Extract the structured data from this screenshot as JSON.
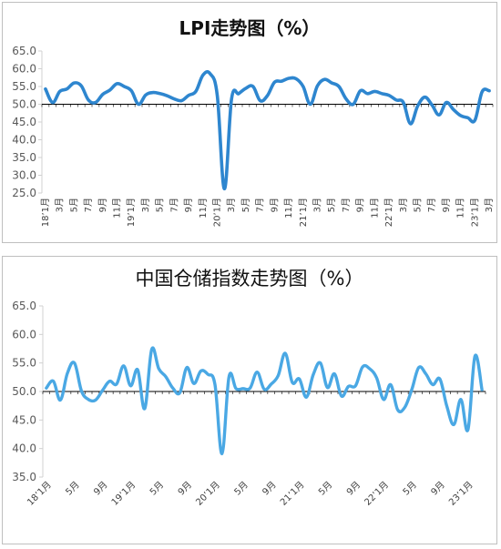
{
  "chart_data": [
    {
      "type": "line",
      "title": "LPI走势图（%）",
      "xlabel": "",
      "ylabel": "",
      "ylim": [
        25,
        65
      ],
      "yticks": [
        "25.0",
        "30.0",
        "35.0",
        "40.0",
        "45.0",
        "50.0",
        "55.0",
        "60.0",
        "65.0"
      ],
      "xtick_labels": [
        "18’1月",
        "3月",
        "5月",
        "7月",
        "9月",
        "11月",
        "19’1月",
        "3月",
        "5月",
        "7月",
        "9月",
        "11月",
        "20’1月",
        "3月",
        "5月",
        "7月",
        "9月",
        "11月",
        "21’1月",
        "3月",
        "5月",
        "7月",
        "9月",
        "11月",
        "22’1月",
        "3月",
        "5月",
        "7月",
        "9月",
        "11月",
        "23’1月",
        "3月"
      ],
      "reference_line": 50,
      "color": "#2e86cf",
      "months": [
        "2018-01",
        "2018-02",
        "2018-03",
        "2018-04",
        "2018-05",
        "2018-06",
        "2018-07",
        "2018-08",
        "2018-09",
        "2018-10",
        "2018-11",
        "2018-12",
        "2019-01",
        "2019-02",
        "2019-03",
        "2019-04",
        "2019-05",
        "2019-06",
        "2019-07",
        "2019-08",
        "2019-09",
        "2019-10",
        "2019-11",
        "2019-12",
        "2020-01",
        "2020-02",
        "2020-03",
        "2020-04",
        "2020-05",
        "2020-06",
        "2020-07",
        "2020-08",
        "2020-09",
        "2020-10",
        "2020-11",
        "2020-12",
        "2021-01",
        "2021-02",
        "2021-03",
        "2021-04",
        "2021-05",
        "2021-06",
        "2021-07",
        "2021-08",
        "2021-09",
        "2021-10",
        "2021-11",
        "2021-12",
        "2022-01",
        "2022-02",
        "2022-03",
        "2022-04",
        "2022-05",
        "2022-06",
        "2022-07",
        "2022-08",
        "2022-09",
        "2022-10",
        "2022-11",
        "2022-12",
        "2023-01",
        "2023-02",
        "2023-03"
      ],
      "values": [
        54.3,
        50.5,
        53.6,
        54.3,
        56.0,
        55.2,
        51.2,
        50.5,
        52.8,
        54.0,
        55.8,
        55.0,
        53.8,
        50.0,
        52.6,
        53.3,
        53.0,
        52.4,
        51.5,
        51.0,
        52.5,
        53.6,
        58.2,
        58.6,
        52.5,
        26.2,
        51.5,
        53.0,
        54.5,
        55.0,
        51.0,
        52.4,
        56.2,
        56.5,
        57.3,
        57.2,
        55.0,
        50.0,
        55.2,
        57.0,
        56.0,
        55.0,
        51.5,
        50.0,
        53.8,
        53.0,
        53.6,
        53.0,
        52.5,
        51.2,
        50.5,
        44.5,
        49.5,
        52.0,
        49.8,
        47.0,
        50.5,
        48.5,
        46.8,
        46.2,
        45.5,
        53.5,
        53.8
      ],
      "annotations": []
    },
    {
      "type": "line",
      "title": "中国仓储指数走势图（%）",
      "xlabel": "",
      "ylabel": "",
      "ylim": [
        35,
        65
      ],
      "yticks": [
        "35.0",
        "40.0",
        "45.0",
        "50.0",
        "55.0",
        "60.0",
        "65.0"
      ],
      "xtick_labels": [
        "18’1月",
        "5月",
        "9月",
        "19’1月",
        "5月",
        "9月",
        "20’1月",
        "5月",
        "9月",
        "21’1月",
        "5月",
        "9月",
        "22’1月",
        "5月",
        "9月",
        "23’1月"
      ],
      "reference_line": 50,
      "color": "#4aa8e4",
      "months": [
        "2018-01",
        "2018-02",
        "2018-03",
        "2018-04",
        "2018-05",
        "2018-06",
        "2018-07",
        "2018-08",
        "2018-09",
        "2018-10",
        "2018-11",
        "2018-12",
        "2019-01",
        "2019-02",
        "2019-03",
        "2019-04",
        "2019-05",
        "2019-06",
        "2019-07",
        "2019-08",
        "2019-09",
        "2019-10",
        "2019-11",
        "2019-12",
        "2020-01",
        "2020-02",
        "2020-03",
        "2020-04",
        "2020-05",
        "2020-06",
        "2020-07",
        "2020-08",
        "2020-09",
        "2020-10",
        "2020-11",
        "2020-12",
        "2021-01",
        "2021-02",
        "2021-03",
        "2021-04",
        "2021-05",
        "2021-06",
        "2021-07",
        "2021-08",
        "2021-09",
        "2021-10",
        "2021-11",
        "2021-12",
        "2022-01",
        "2022-02",
        "2022-03",
        "2022-04",
        "2022-05",
        "2022-06",
        "2022-07",
        "2022-08",
        "2022-09",
        "2022-10",
        "2022-11",
        "2022-12",
        "2023-01",
        "2023-02",
        "2023-03"
      ],
      "values": [
        50.6,
        51.8,
        48.5,
        53.2,
        55.0,
        50.1,
        48.6,
        48.5,
        50.2,
        51.8,
        51.3,
        54.5,
        51.0,
        53.8,
        47.0,
        57.4,
        54.0,
        52.6,
        50.6,
        49.8,
        54.2,
        51.4,
        53.6,
        53.0,
        51.2,
        39.1,
        52.6,
        50.5,
        50.5,
        50.6,
        53.4,
        50.4,
        51.3,
        52.8,
        56.7,
        51.6,
        52.2,
        49.0,
        53.0,
        55.0,
        50.7,
        53.1,
        49.2,
        50.9,
        51.0,
        54.3,
        54.0,
        52.4,
        48.6,
        51.2,
        46.8,
        47.2,
        50.3,
        54.2,
        53.1,
        51.2,
        52.2,
        47.4,
        44.2,
        48.6,
        43.3,
        56.2,
        50.3
      ]
    }
  ]
}
